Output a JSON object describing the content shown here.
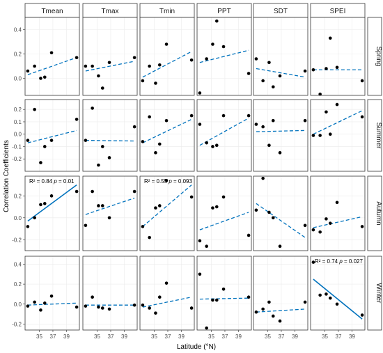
{
  "chart_data": {
    "type": "scatter",
    "xlabel": "Latitude (°N)",
    "ylabel": "Correlation Coefficients",
    "columns": [
      "Tmean",
      "Tmax",
      "Tmin",
      "PPT",
      "SDT",
      "SPEI"
    ],
    "rows": [
      "Spring",
      "Summer",
      "Autumn",
      "Winter"
    ],
    "xlim": [
      32.9,
      40.9
    ],
    "x_ticks": [
      35,
      37,
      39
    ],
    "row_axes": [
      {
        "ylim": [
          -0.14,
          0.5
        ],
        "ticks": [
          0.0,
          0.2,
          0.4
        ],
        "tick_labels": [
          "0.0",
          "0.2",
          "0.4"
        ]
      },
      {
        "ylim": [
          -0.3,
          0.28
        ],
        "ticks": [
          -0.2,
          -0.1,
          0.0,
          0.1,
          0.2
        ],
        "tick_labels": [
          "-0.2",
          "-0.1",
          "0.0",
          "0.1",
          "0.2"
        ]
      },
      {
        "ylim": [
          -0.3,
          0.38
        ],
        "ticks": [
          -0.2,
          0.0,
          0.2
        ],
        "tick_labels": [
          "-0.2",
          "0.0",
          "0.2"
        ]
      },
      {
        "ylim": [
          -0.26,
          0.48
        ],
        "ticks": [
          -0.2,
          0.0,
          0.2,
          0.4
        ],
        "tick_labels": [
          "-0.2",
          "0.0",
          "0.2",
          "0.4"
        ]
      }
    ],
    "panels": [
      {
        "row": 0,
        "col": 0,
        "x": [
          33.3,
          34.3,
          35.2,
          35.8,
          36.8,
          40.5
        ],
        "y": [
          0.06,
          0.1,
          0.0,
          0.01,
          0.21,
          0.17
        ],
        "fit": [
          0.03,
          0.17
        ],
        "sig": false
      },
      {
        "row": 0,
        "col": 1,
        "x": [
          33.3,
          34.3,
          35.2,
          35.8,
          36.8,
          40.5
        ],
        "y": [
          0.1,
          0.1,
          0.02,
          -0.08,
          0.13,
          0.17
        ],
        "fit": [
          0.06,
          0.14
        ],
        "sig": false
      },
      {
        "row": 0,
        "col": 2,
        "x": [
          33.3,
          34.3,
          35.2,
          35.8,
          36.8,
          40.5
        ],
        "y": [
          -0.02,
          0.1,
          -0.04,
          0.11,
          0.28,
          0.15
        ],
        "fit": [
          0.01,
          0.22
        ],
        "sig": false
      },
      {
        "row": 0,
        "col": 3,
        "x": [
          33.3,
          34.3,
          35.2,
          35.8,
          36.8,
          40.5
        ],
        "y": [
          -0.12,
          0.16,
          0.28,
          0.47,
          0.26,
          0.04
        ],
        "fit": [
          0.13,
          0.23
        ],
        "sig": false
      },
      {
        "row": 0,
        "col": 4,
        "x": [
          33.3,
          34.3,
          35.2,
          35.8,
          36.8,
          40.5
        ],
        "y": [
          0.16,
          -0.02,
          0.13,
          -0.07,
          0.02,
          0.06
        ],
        "fit": [
          0.08,
          0.01
        ],
        "sig": false
      },
      {
        "row": 0,
        "col": 5,
        "x": [
          33.3,
          34.3,
          35.2,
          35.8,
          36.8,
          40.5
        ],
        "y": [
          0.07,
          -0.13,
          0.08,
          0.33,
          0.09,
          -0.02
        ],
        "fit": [
          0.07,
          0.07
        ],
        "sig": false
      },
      {
        "row": 1,
        "col": 0,
        "x": [
          33.3,
          34.3,
          35.2,
          35.8,
          36.8,
          40.5
        ],
        "y": [
          -0.05,
          0.2,
          -0.23,
          -0.1,
          -0.05,
          0.12
        ],
        "fit": [
          -0.07,
          0.03
        ],
        "sig": false
      },
      {
        "row": 1,
        "col": 1,
        "x": [
          33.3,
          34.3,
          35.2,
          35.8,
          36.8,
          40.5
        ],
        "y": [
          -0.05,
          0.21,
          -0.25,
          -0.1,
          -0.19,
          0.06
        ],
        "fit": [
          -0.05,
          -0.055
        ],
        "sig": false
      },
      {
        "row": 1,
        "col": 2,
        "x": [
          33.3,
          34.3,
          35.2,
          35.8,
          36.8,
          40.5
        ],
        "y": [
          -0.06,
          0.14,
          -0.15,
          -0.08,
          0.11,
          0.15
        ],
        "fit": [
          -0.07,
          0.12
        ],
        "sig": false
      },
      {
        "row": 1,
        "col": 3,
        "x": [
          33.3,
          34.3,
          35.2,
          35.8,
          36.8,
          40.5
        ],
        "y": [
          0.08,
          -0.07,
          -0.1,
          -0.09,
          0.15,
          0.15
        ],
        "fit": [
          -0.09,
          0.13
        ],
        "sig": false
      },
      {
        "row": 1,
        "col": 4,
        "x": [
          33.3,
          34.3,
          35.2,
          35.8,
          36.8,
          40.5
        ],
        "y": [
          0.08,
          0.06,
          -0.09,
          0.11,
          -0.15,
          0.11
        ],
        "fit": [
          0.02,
          0.03
        ],
        "sig": false
      },
      {
        "row": 1,
        "col": 5,
        "x": [
          33.3,
          34.3,
          35.2,
          35.8,
          36.8,
          40.5
        ],
        "y": [
          -0.01,
          -0.01,
          0.18,
          0.0,
          0.24,
          0.14
        ],
        "fit": [
          0.0,
          0.19
        ],
        "sig": false
      },
      {
        "row": 2,
        "col": 0,
        "x": [
          33.3,
          34.3,
          35.2,
          35.8,
          36.8,
          40.5
        ],
        "y": [
          -0.08,
          0.0,
          0.12,
          0.13,
          0.2,
          0.24
        ],
        "fit": [
          -0.03,
          0.3
        ],
        "sig": true,
        "annot": {
          "r2": "0.84",
          "p": "0.01"
        }
      },
      {
        "row": 2,
        "col": 1,
        "x": [
          33.3,
          34.3,
          35.2,
          35.8,
          36.8,
          40.5
        ],
        "y": [
          -0.07,
          0.24,
          0.11,
          0.11,
          0.0,
          0.24
        ],
        "fit": [
          0.03,
          0.18
        ],
        "sig": false
      },
      {
        "row": 2,
        "col": 2,
        "x": [
          33.3,
          34.3,
          35.2,
          35.8,
          36.8,
          40.5
        ],
        "y": [
          -0.08,
          -0.18,
          0.09,
          0.11,
          0.34,
          0.19
        ],
        "fit": [
          -0.08,
          0.3
        ],
        "sig": false,
        "annot": {
          "r2": "0.55",
          "p": "0.093"
        }
      },
      {
        "row": 2,
        "col": 3,
        "x": [
          33.3,
          34.3,
          35.2,
          35.8,
          36.8,
          40.5
        ],
        "y": [
          -0.21,
          -0.26,
          0.09,
          0.1,
          0.19,
          -0.16
        ],
        "fit": [
          -0.11,
          0.05
        ],
        "sig": false
      },
      {
        "row": 2,
        "col": 4,
        "x": [
          33.3,
          34.3,
          35.2,
          35.8,
          36.8,
          40.5
        ],
        "y": [
          0.07,
          0.36,
          0.05,
          0.0,
          -0.26,
          -0.07
        ],
        "fit": [
          0.13,
          -0.18
        ],
        "sig": false
      },
      {
        "row": 2,
        "col": 5,
        "x": [
          33.3,
          34.3,
          35.2,
          35.8,
          36.8,
          40.5
        ],
        "y": [
          -0.11,
          -0.13,
          -0.01,
          -0.05,
          0.14,
          -0.08
        ],
        "fit": [
          -0.09,
          0.01
        ],
        "sig": false
      },
      {
        "row": 3,
        "col": 0,
        "x": [
          33.3,
          34.3,
          35.2,
          35.8,
          36.8,
          40.5
        ],
        "y": [
          -0.02,
          0.02,
          -0.06,
          0.01,
          0.08,
          -0.03
        ],
        "fit": [
          -0.01,
          0.01
        ],
        "sig": false
      },
      {
        "row": 3,
        "col": 1,
        "x": [
          33.3,
          34.3,
          35.2,
          35.8,
          36.8,
          40.5
        ],
        "y": [
          -0.02,
          0.07,
          -0.03,
          -0.04,
          -0.05,
          -0.01
        ],
        "fit": [
          -0.01,
          -0.01
        ],
        "sig": false
      },
      {
        "row": 3,
        "col": 2,
        "x": [
          33.3,
          34.3,
          35.2,
          35.8,
          36.8,
          40.5
        ],
        "y": [
          -0.01,
          -0.04,
          -0.09,
          0.07,
          0.21,
          -0.04
        ],
        "fit": [
          -0.03,
          0.07
        ],
        "sig": false
      },
      {
        "row": 3,
        "col": 3,
        "x": [
          33.3,
          34.3,
          35.2,
          35.8,
          36.8,
          40.5
        ],
        "y": [
          0.3,
          -0.24,
          0.04,
          0.04,
          0.15,
          0.07
        ],
        "fit": [
          0.05,
          0.06
        ],
        "sig": false
      },
      {
        "row": 3,
        "col": 4,
        "x": [
          33.3,
          34.3,
          35.2,
          35.8,
          36.8,
          40.5
        ],
        "y": [
          -0.08,
          -0.05,
          0.02,
          -0.12,
          -0.17,
          0.02
        ],
        "fit": [
          -0.08,
          -0.05
        ],
        "sig": false
      },
      {
        "row": 3,
        "col": 5,
        "x": [
          33.3,
          34.3,
          35.2,
          35.8,
          36.8,
          40.5
        ],
        "y": [
          0.42,
          0.09,
          0.1,
          0.06,
          0.0,
          -0.11
        ],
        "fit": [
          0.25,
          -0.15
        ],
        "sig": true,
        "annot": {
          "r2": "0.74",
          "p": "0.027"
        }
      }
    ],
    "colors": {
      "fit": "#0072bd",
      "points": "#000000",
      "strip_bg": "#ffffff",
      "strip_border": "#333333",
      "panel_border": "#333333",
      "grid": "#ebebeb"
    },
    "grid": true,
    "legend": "none"
  }
}
